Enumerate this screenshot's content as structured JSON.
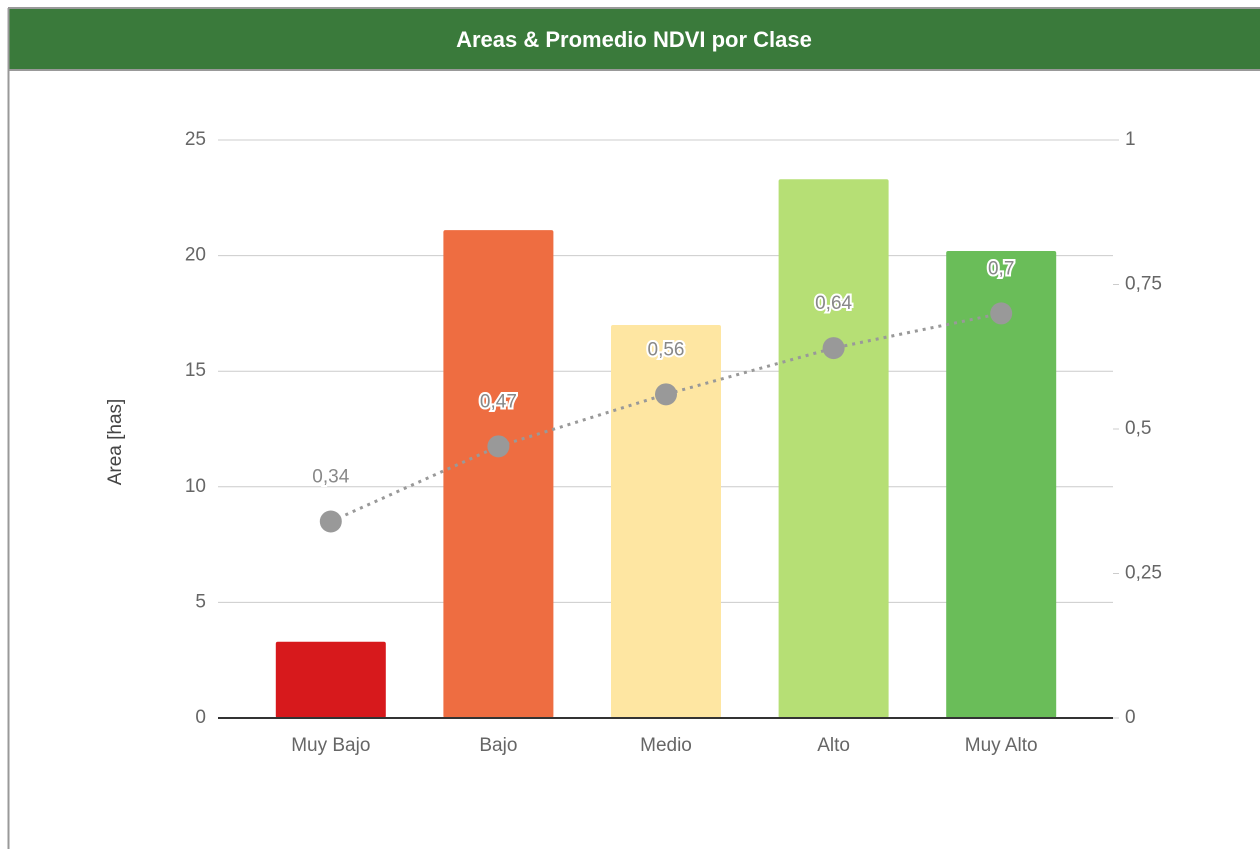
{
  "chart_data": {
    "type": "bar_line",
    "title": "Areas & Promedio NDVI por Clase",
    "ylabel": "Area [has]",
    "categories": [
      "Muy Bajo",
      "Bajo",
      "Medio",
      "Alto",
      "Muy Alto"
    ],
    "series": [
      {
        "type": "bar",
        "colors": [
          "#d7191c",
          "#ee6d41",
          "#fee6a2",
          "#b6df75",
          "#6abd59"
        ],
        "values": [
          3.3,
          21.1,
          17.0,
          23.3,
          20.2
        ]
      },
      {
        "type": "line",
        "axis": "y2",
        "color": "#999999",
        "line_style": "dotted",
        "values": [
          0.34,
          0.47,
          0.56,
          0.64,
          0.7
        ],
        "value_labels": [
          "0,34",
          "0,47",
          "0,56",
          "0,64",
          "0,7"
        ]
      }
    ],
    "ylim": [
      0,
      25
    ],
    "yticks": [
      0,
      5,
      10,
      15,
      20,
      25
    ],
    "y2lim": [
      0,
      1
    ],
    "y2ticks": [
      0,
      {
        "value": 0.25,
        "label": "0,25"
      },
      {
        "value": 0.5,
        "label": "0,5"
      },
      {
        "value": 0.75,
        "label": "0,75"
      },
      1
    ],
    "grid": true
  }
}
